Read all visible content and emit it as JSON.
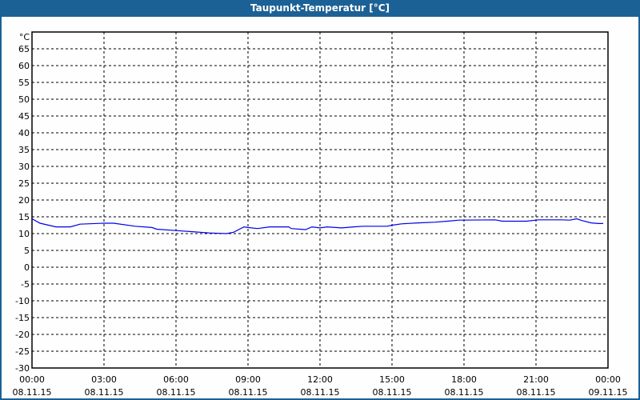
{
  "window": {
    "title": "Taupunkt-Temperatur [°C]"
  },
  "chart_data": {
    "type": "line",
    "title": "Taupunkt-Temperatur [°C]",
    "ylabel": "°C",
    "xlabel": "",
    "ylim": [
      -30,
      70
    ],
    "yticks": [
      65,
      60,
      55,
      50,
      45,
      40,
      35,
      30,
      25,
      20,
      15,
      10,
      5,
      0,
      -5,
      -10,
      -15,
      -20,
      -25,
      -30
    ],
    "xlim": [
      "08.11.15 00:00",
      "09.11.15 00:00"
    ],
    "xticks": [
      {
        "time": "00:00",
        "date": "08.11.15"
      },
      {
        "time": "03:00",
        "date": "08.11.15"
      },
      {
        "time": "06:00",
        "date": "08.11.15"
      },
      {
        "time": "09:00",
        "date": "08.11.15"
      },
      {
        "time": "12:00",
        "date": "08.11.15"
      },
      {
        "time": "15:00",
        "date": "08.11.15"
      },
      {
        "time": "18:00",
        "date": "08.11.15"
      },
      {
        "time": "21:00",
        "date": "08.11.15"
      },
      {
        "time": "00:00",
        "date": "09.11.15"
      }
    ],
    "grid": true,
    "line_color": "#0000ee",
    "series": [
      {
        "points": [
          [
            "00:00",
            14.4
          ],
          [
            "00:20",
            13.1
          ],
          [
            "01:00",
            12.0
          ],
          [
            "01:36",
            12.0
          ],
          [
            "02:00",
            12.8
          ],
          [
            "03:00",
            13.1
          ],
          [
            "03:24",
            13.1
          ],
          [
            "04:18",
            12.2
          ],
          [
            "05:00",
            11.8
          ],
          [
            "05:12",
            11.3
          ],
          [
            "06:00",
            10.9
          ],
          [
            "06:48",
            10.5
          ],
          [
            "07:24",
            10.2
          ],
          [
            "08:06",
            10.0
          ],
          [
            "08:24",
            10.4
          ],
          [
            "08:50",
            12.0
          ],
          [
            "09:00",
            11.8
          ],
          [
            "09:24",
            11.5
          ],
          [
            "09:54",
            12.0
          ],
          [
            "10:42",
            12.0
          ],
          [
            "10:48",
            11.5
          ],
          [
            "11:24",
            11.2
          ],
          [
            "11:40",
            12.0
          ],
          [
            "12:00",
            11.7
          ],
          [
            "12:18",
            12.0
          ],
          [
            "12:54",
            11.7
          ],
          [
            "13:24",
            12.0
          ],
          [
            "13:48",
            12.2
          ],
          [
            "14:48",
            12.2
          ],
          [
            "15:00",
            12.5
          ],
          [
            "15:24",
            12.9
          ],
          [
            "16:06",
            13.2
          ],
          [
            "16:48",
            13.4
          ],
          [
            "17:18",
            13.7
          ],
          [
            "17:48",
            14.0
          ],
          [
            "19:18",
            14.1
          ],
          [
            "19:36",
            13.7
          ],
          [
            "20:36",
            13.7
          ],
          [
            "21:06",
            14.1
          ],
          [
            "22:06",
            14.1
          ],
          [
            "22:24",
            14.0
          ],
          [
            "22:42",
            14.4
          ],
          [
            "22:54",
            13.9
          ],
          [
            "23:18",
            13.2
          ],
          [
            "23:36",
            13.0
          ],
          [
            "23:48",
            13.0
          ]
        ]
      }
    ]
  }
}
